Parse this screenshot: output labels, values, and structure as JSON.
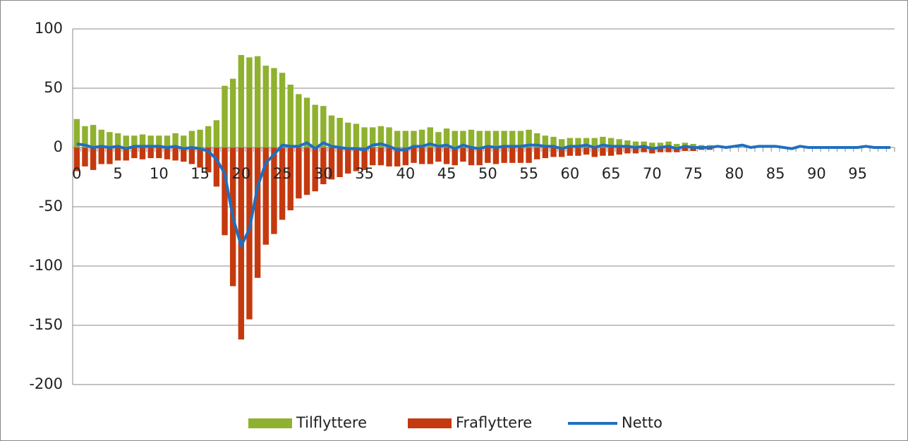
{
  "chart_data": {
    "type": "bar",
    "categories": [
      "0",
      null,
      null,
      null,
      null,
      "5",
      null,
      null,
      null,
      null,
      "10",
      null,
      null,
      null,
      null,
      "15",
      null,
      null,
      null,
      null,
      "20",
      null,
      null,
      null,
      null,
      "25",
      null,
      null,
      null,
      null,
      "30",
      null,
      null,
      null,
      null,
      "35",
      null,
      null,
      null,
      null,
      "40",
      null,
      null,
      null,
      null,
      "45",
      null,
      null,
      null,
      null,
      "50",
      null,
      null,
      null,
      null,
      "55",
      null,
      null,
      null,
      null,
      "60",
      null,
      null,
      null,
      null,
      "65",
      null,
      null,
      null,
      null,
      "70",
      null,
      null,
      null,
      null,
      "75",
      null,
      null,
      null,
      null,
      "80",
      null,
      null,
      null,
      null,
      "85",
      null,
      null,
      null,
      null,
      "90",
      null,
      null,
      null,
      null,
      "95",
      null,
      null,
      null,
      null
    ],
    "series": [
      {
        "name": "Tilflyttere",
        "color": "#8fb12f",
        "kind": "bar",
        "values": [
          24,
          18,
          19,
          15,
          13,
          12,
          10,
          10,
          11,
          10,
          10,
          10,
          12,
          10,
          14,
          15,
          18,
          23,
          52,
          58,
          78,
          76,
          77,
          69,
          67,
          63,
          53,
          45,
          42,
          36,
          35,
          27,
          25,
          21,
          20,
          17,
          17,
          18,
          17,
          14,
          14,
          14,
          15,
          17,
          13,
          16,
          14,
          14,
          15,
          14,
          14,
          14,
          14,
          14,
          14,
          15,
          12,
          10,
          9,
          7,
          8,
          8,
          8,
          8,
          9,
          8,
          7,
          6,
          5,
          5,
          4,
          4,
          5,
          3,
          4,
          3,
          2,
          2,
          0,
          0,
          0,
          0,
          0,
          0,
          0,
          0,
          0,
          0,
          0,
          0,
          0,
          0,
          0,
          0,
          0,
          0,
          0,
          0,
          0,
          0
        ]
      },
      {
        "name": "Fraflyttere",
        "color": "#c5390f",
        "kind": "bar",
        "values": [
          -20,
          -16,
          -19,
          -14,
          -14,
          -11,
          -11,
          -9,
          -10,
          -9,
          -9,
          -10,
          -11,
          -12,
          -14,
          -17,
          -21,
          -33,
          -74,
          -117,
          -162,
          -145,
          -110,
          -82,
          -73,
          -61,
          -53,
          -43,
          -40,
          -37,
          -31,
          -27,
          -25,
          -22,
          -20,
          -19,
          -15,
          -15,
          -16,
          -16,
          -15,
          -13,
          -14,
          -14,
          -12,
          -14,
          -15,
          -12,
          -15,
          -15,
          -13,
          -14,
          -13,
          -13,
          -13,
          -13,
          -10,
          -9,
          -8,
          -8,
          -7,
          -7,
          -6,
          -8,
          -7,
          -7,
          -6,
          -5,
          -5,
          -4,
          -5,
          -4,
          -4,
          -4,
          -3,
          -3,
          -2,
          -2,
          0,
          0,
          0,
          0,
          0,
          0,
          0,
          0,
          0,
          0,
          0,
          0,
          0,
          0,
          0,
          0,
          0,
          0,
          0,
          0,
          0,
          0
        ]
      },
      {
        "name": "Netto",
        "color": "#1f6fc0",
        "kind": "line",
        "values": [
          3,
          2,
          0,
          1,
          0,
          1,
          -1,
          1,
          1,
          1,
          1,
          0,
          1,
          -1,
          0,
          -1,
          -3,
          -10,
          -22,
          -59,
          -83,
          -69,
          -33,
          -13,
          -6,
          2,
          1,
          1,
          4,
          -1,
          4,
          1,
          0,
          -1,
          -1,
          -2,
          2,
          3,
          1,
          -2,
          -2,
          1,
          1,
          3,
          1,
          2,
          -1,
          2,
          0,
          -1,
          1,
          0,
          1,
          1,
          1,
          2,
          2,
          1,
          1,
          -1,
          1,
          1,
          2,
          0,
          2,
          1,
          1,
          1,
          0,
          1,
          -1,
          0,
          1,
          -1,
          1,
          0,
          0,
          0,
          1,
          0,
          1,
          2,
          0,
          1,
          1,
          1,
          0,
          -1,
          1,
          0,
          0,
          0,
          0,
          0,
          0,
          0,
          1,
          0,
          0,
          0
        ]
      }
    ],
    "ylim": [
      -200,
      100
    ],
    "yticks": [
      100,
      50,
      0,
      -50,
      -100,
      -150,
      -200
    ],
    "grid": true,
    "legend": "bottom"
  }
}
